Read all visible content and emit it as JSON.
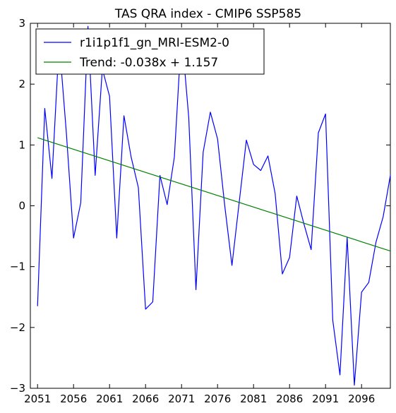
{
  "chart_data": {
    "type": "line",
    "title": "TAS QRA index - CMIP6 SSP585",
    "xlabel": "",
    "ylabel": "",
    "xlim": [
      2050,
      2100
    ],
    "ylim": [
      -3,
      3
    ],
    "x_ticks": [
      2051,
      2056,
      2061,
      2066,
      2071,
      2076,
      2081,
      2086,
      2091,
      2096
    ],
    "y_ticks": [
      -3,
      -2,
      -1,
      0,
      1,
      2,
      3
    ],
    "grid": false,
    "legend_position": "top-left",
    "series": [
      {
        "name": "r1i1p1f1_gn_MRI-ESM2-0",
        "color": "#0000ff",
        "x": [
          2051,
          2052,
          2053,
          2054,
          2055,
          2056,
          2057,
          2058,
          2059,
          2060,
          2061,
          2062,
          2063,
          2064,
          2065,
          2066,
          2067,
          2068,
          2069,
          2070,
          2071,
          2072,
          2073,
          2074,
          2075,
          2076,
          2077,
          2078,
          2079,
          2080,
          2081,
          2082,
          2083,
          2084,
          2085,
          2086,
          2087,
          2088,
          2089,
          2090,
          2091,
          2092,
          2093,
          2094,
          2095,
          2096,
          2097,
          2098,
          2099,
          2100
        ],
        "y": [
          -1.65,
          1.6,
          0.45,
          2.7,
          1.2,
          -0.53,
          0.05,
          2.95,
          0.5,
          2.25,
          1.8,
          -0.53,
          1.48,
          0.8,
          0.3,
          -1.7,
          -1.58,
          0.5,
          0.02,
          0.8,
          2.85,
          1.45,
          -1.38,
          0.88,
          1.54,
          1.1,
          0.0,
          -0.98,
          0.05,
          1.08,
          0.68,
          0.58,
          0.82,
          0.2,
          -1.12,
          -0.85,
          0.16,
          -0.3,
          -0.72,
          1.2,
          1.51,
          -1.88,
          -2.78,
          -0.52,
          -2.95,
          -1.42,
          -1.26,
          -0.6,
          -0.18,
          0.5
        ]
      },
      {
        "name": "Trend: -0.038x + 1.157",
        "color": "#008000",
        "x": [
          2051,
          2100
        ],
        "y": [
          1.119,
          -0.743
        ]
      }
    ]
  }
}
